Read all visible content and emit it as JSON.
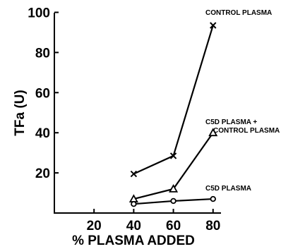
{
  "chart_data": {
    "type": "line",
    "xlabel": "% PLASMA ADDED",
    "ylabel": "TFa (U)",
    "x_ticks": [
      20,
      40,
      60,
      80
    ],
    "y_ticks": [
      20,
      40,
      60,
      80,
      100
    ],
    "xlim": [
      0,
      84
    ],
    "ylim": [
      0,
      100
    ],
    "grid": false,
    "series": [
      {
        "name": "CONTROL PLASMA",
        "label_lines": [
          "CONTROL PLASMA"
        ],
        "marker": "x",
        "x": [
          40,
          60,
          80
        ],
        "y": [
          19.5,
          28.5,
          93.5
        ]
      },
      {
        "name": "C5D PLASMA + CONTROL PLASMA",
        "label_lines": [
          "C5D PLASMA +",
          "CONTROL PLASMA"
        ],
        "marker": "triangle",
        "x": [
          40,
          60,
          80
        ],
        "y": [
          7,
          12,
          40
        ]
      },
      {
        "name": "C5D PLASMA",
        "label_lines": [
          "C5D PLASMA"
        ],
        "marker": "circle",
        "x": [
          40,
          60,
          80
        ],
        "y": [
          4.5,
          6,
          7
        ]
      }
    ]
  }
}
